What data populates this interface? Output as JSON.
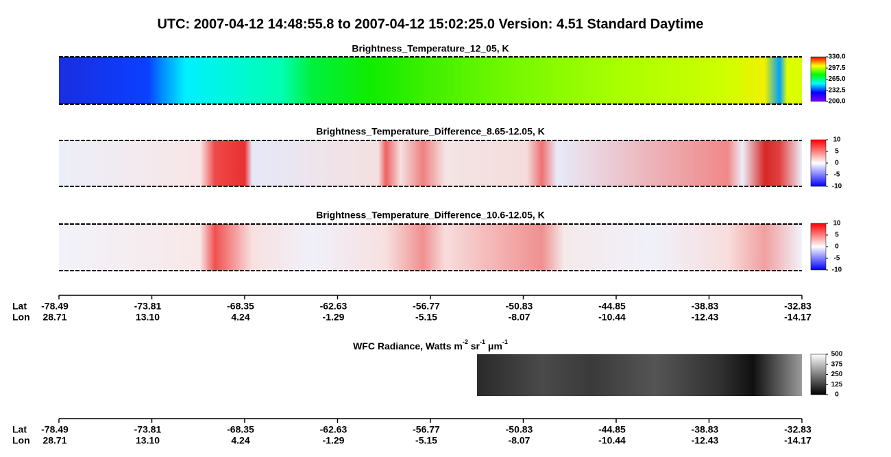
{
  "title": "UTC:  2007-04-12   14:48:55.8  to  2007-04-12   15:02:25.0    Version: 4.51  Standard Daytime",
  "chart_data": [
    {
      "type": "strip",
      "title": "Brightness_Temperature_12_05, K",
      "colorbar": {
        "colors": [
          "#8000ff",
          "#0000ff",
          "#00ffff",
          "#00ff00",
          "#ffff00",
          "#ff0000"
        ],
        "lim": [
          200,
          330
        ],
        "ticks": [
          {
            "value": 200,
            "label": "200.0"
          },
          {
            "value": 232.5,
            "label": "232.5"
          },
          {
            "value": 265,
            "label": "265.0"
          },
          {
            "value": 297.5,
            "label": "297.5"
          },
          {
            "value": 330,
            "label": "330.0"
          }
        ]
      }
    },
    {
      "type": "strip",
      "title": "Brightness_Temperature_Difference_8.65-12.05, K",
      "colorbar": {
        "colors": [
          "#0000ff",
          "#ffffff",
          "#ff0000"
        ],
        "lim": [
          -10,
          10
        ],
        "ticks": [
          -10,
          -5,
          0,
          5,
          10
        ]
      }
    },
    {
      "type": "strip",
      "title": "Brightness_Temperature_Difference_10.6-12.05, K",
      "colorbar": {
        "colors": [
          "#0000ff",
          "#ffffff",
          "#ff0000"
        ],
        "lim": [
          -10,
          10
        ],
        "ticks": [
          -10,
          -5,
          0,
          5,
          10
        ]
      }
    },
    {
      "type": "strip",
      "title": [
        "WFC Radiance, Watts m",
        "-2",
        " sr",
        "-1",
        " μm",
        "-1"
      ],
      "colorbar": {
        "colors": [
          "#000000",
          "#ffffff"
        ],
        "lim": [
          0,
          500
        ],
        "ticks": [
          0,
          125,
          250,
          375,
          500
        ]
      }
    }
  ],
  "axes": [
    {
      "lat_label": "Lat",
      "lon_label": "Lon",
      "lat": [
        "-78.49",
        "-73.81",
        "-68.35",
        "-62.63",
        "-56.77",
        "-50.83",
        "-44.85",
        "-38.83",
        "-32.83"
      ],
      "lon": [
        "28.71",
        "13.10",
        "4.24",
        "-1.29",
        "-5.15",
        "-8.07",
        "-10.44",
        "-12.43",
        "-14.17"
      ]
    },
    {
      "lat_label": "Lat",
      "lon_label": "Lon",
      "lat": [
        "-78.49",
        "-73.81",
        "-68.35",
        "-62.63",
        "-56.77",
        "-50.83",
        "-44.85",
        "-38.83",
        "-32.83"
      ],
      "lon": [
        "28.71",
        "13.10",
        "4.24",
        "-1.29",
        "-5.15",
        "-8.07",
        "-10.44",
        "-12.43",
        "-14.17"
      ]
    }
  ]
}
